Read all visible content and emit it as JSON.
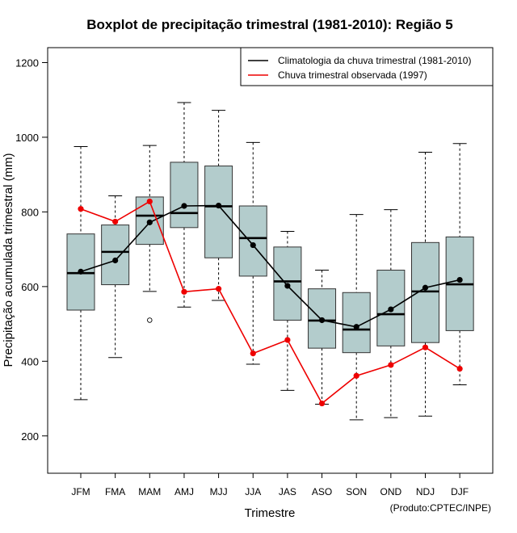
{
  "chart_data": {
    "type": "boxplot",
    "title": "Boxplot de precipitação trimestral (1981-2010): Região 5",
    "xlabel": "Trimestre",
    "ylabel": "Precipitação acumulada trimestral (mm)",
    "ylim": [
      100,
      1240
    ],
    "yticks": [
      200,
      400,
      600,
      800,
      1000,
      1200
    ],
    "categories": [
      "JFM",
      "FMA",
      "MAM",
      "AMJ",
      "MJJ",
      "JJA",
      "JAS",
      "ASO",
      "SON",
      "OND",
      "NDJ",
      "DJF"
    ],
    "boxes": [
      {
        "min": 297,
        "q1": 537,
        "median": 636,
        "q3": 741,
        "max": 975,
        "outliers": []
      },
      {
        "min": 410,
        "q1": 605,
        "median": 693,
        "q3": 765,
        "max": 843,
        "outliers": []
      },
      {
        "min": 587,
        "q1": 713,
        "median": 790,
        "q3": 840,
        "max": 978,
        "outliers": [
          510
        ]
      },
      {
        "min": 545,
        "q1": 758,
        "median": 797,
        "q3": 933,
        "max": 1093,
        "outliers": []
      },
      {
        "min": 563,
        "q1": 677,
        "median": 815,
        "q3": 923,
        "max": 1072,
        "outliers": []
      },
      {
        "min": 392,
        "q1": 628,
        "median": 730,
        "q3": 816,
        "max": 986,
        "outliers": []
      },
      {
        "min": 322,
        "q1": 510,
        "median": 614,
        "q3": 706,
        "max": 748,
        "outliers": []
      },
      {
        "min": 285,
        "q1": 435,
        "median": 509,
        "q3": 594,
        "max": 644,
        "outliers": []
      },
      {
        "min": 243,
        "q1": 423,
        "median": 485,
        "q3": 584,
        "max": 793,
        "outliers": []
      },
      {
        "min": 249,
        "q1": 441,
        "median": 526,
        "q3": 644,
        "max": 806,
        "outliers": []
      },
      {
        "min": 253,
        "q1": 450,
        "median": 587,
        "q3": 718,
        "max": 960,
        "outliers": []
      },
      {
        "min": 337,
        "q1": 482,
        "median": 606,
        "q3": 733,
        "max": 983,
        "outliers": []
      }
    ],
    "series": [
      {
        "name": "Climatologia da chuva trimestral (1981-2010)",
        "color": "#000000",
        "values": [
          640,
          670,
          772,
          816,
          817,
          711,
          602,
          510,
          492,
          539,
          597,
          618
        ]
      },
      {
        "name": "Chuva trimestral observada (1997)",
        "color": "#ee0000",
        "values": [
          808,
          774,
          828,
          586,
          594,
          421,
          457,
          287,
          361,
          390,
          437,
          380
        ]
      }
    ],
    "box_fill": "#b3cccc",
    "legend_position": "top-right",
    "grid": false
  },
  "credit": "(Produto:CPTEC/INPE)"
}
